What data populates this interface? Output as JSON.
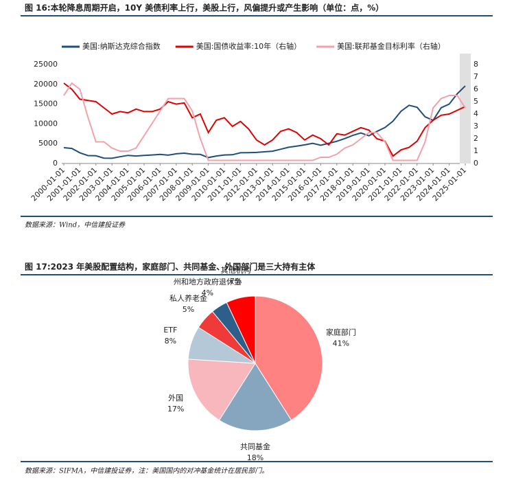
{
  "chart_data": [
    {
      "type": "line",
      "title": "图 16:本轮降息周期开启，10Y 美债利率上行，美股上行，风偏提升或产生影响（单位：点，%）",
      "source": "数据来源：Wind，中信建投证券",
      "x": [
        "2000-01-01",
        "2000-07-01",
        "2001-01-01",
        "2001-07-01",
        "2002-01-01",
        "2002-07-01",
        "2003-01-01",
        "2003-07-01",
        "2004-01-01",
        "2004-07-01",
        "2005-01-01",
        "2005-07-01",
        "2006-01-01",
        "2006-07-01",
        "2007-01-01",
        "2007-07-01",
        "2008-01-01",
        "2008-07-01",
        "2009-01-01",
        "2009-07-01",
        "2010-01-01",
        "2010-07-01",
        "2011-01-01",
        "2011-07-01",
        "2012-01-01",
        "2012-07-01",
        "2013-01-01",
        "2013-07-01",
        "2014-01-01",
        "2014-07-01",
        "2015-01-01",
        "2015-07-01",
        "2016-01-01",
        "2016-07-01",
        "2017-01-01",
        "2017-07-01",
        "2018-01-01",
        "2018-07-01",
        "2019-01-01",
        "2019-07-01",
        "2020-01-01",
        "2020-07-01",
        "2021-01-01",
        "2021-07-01",
        "2022-01-01",
        "2022-07-01",
        "2023-01-01",
        "2023-07-01",
        "2024-01-01",
        "2024-07-01",
        "2025-01-01"
      ],
      "xticks": [
        "2000-01-01",
        "2001-01-01",
        "2002-01-01",
        "2003-01-01",
        "2004-01-01",
        "2005-01-01",
        "2006-01-01",
        "2007-01-01",
        "2008-01-01",
        "2009-01-01",
        "2010-01-01",
        "2011-01-01",
        "2012-01-01",
        "2013-01-01",
        "2014-01-01",
        "2015-01-01",
        "2016-01-01",
        "2017-01-01",
        "2018-01-01",
        "2019-01-01",
        "2020-01-01",
        "2021-01-01",
        "2022-01-01",
        "2023-01-01",
        "2024-01-01",
        "2025-01-01"
      ],
      "ylim": [
        0,
        25000
      ],
      "yticks": [
        0,
        5000,
        10000,
        15000,
        20000,
        25000
      ],
      "y2lim": [
        0,
        8
      ],
      "y2ticks": [
        0,
        1,
        2,
        3,
        4,
        5,
        6,
        7,
        8
      ],
      "series": [
        {
          "name": "美国:纳斯达克综合指数",
          "color": "#1f4e79",
          "values": [
            4000,
            3800,
            2700,
            2000,
            1950,
            1350,
            1320,
            1700,
            2050,
            1900,
            2050,
            2150,
            2300,
            2100,
            2450,
            2600,
            2350,
            2300,
            1500,
            1900,
            2150,
            2200,
            2700,
            2750,
            2800,
            2950,
            3100,
            3600,
            4100,
            4400,
            4700,
            5100,
            4600,
            5100,
            5600,
            6300,
            7100,
            7700,
            7000,
            8100,
            9100,
            10700,
            13200,
            14700,
            14200,
            11800,
            10900,
            14100,
            15000,
            17600,
            19600
          ]
        },
        {
          "name": "美国:国债收益率:10年（右轴）",
          "color": "#e00000",
          "axis": "y2",
          "values": [
            6.5,
            6.0,
            5.2,
            5.1,
            5.0,
            4.5,
            4.0,
            4.2,
            4.1,
            4.4,
            4.2,
            4.2,
            4.4,
            5.0,
            4.8,
            4.9,
            3.7,
            4.0,
            2.5,
            3.5,
            3.7,
            3.0,
            3.4,
            2.8,
            1.9,
            1.5,
            1.9,
            2.6,
            2.8,
            2.5,
            1.9,
            2.3,
            2.0,
            1.5,
            2.4,
            2.3,
            2.6,
            2.9,
            2.7,
            2.0,
            1.8,
            0.6,
            1.1,
            1.3,
            1.8,
            2.9,
            3.5,
            3.9,
            4.0,
            4.3,
            4.6
          ]
        },
        {
          "name": "美国:联邦基金目标利率（右轴）",
          "color": "#f4a0a8",
          "axis": "y2",
          "values": [
            5.5,
            6.5,
            6.0,
            3.75,
            1.75,
            1.75,
            1.25,
            1.0,
            1.0,
            1.25,
            2.25,
            3.25,
            4.25,
            5.25,
            5.25,
            5.25,
            4.25,
            2.0,
            0.25,
            0.25,
            0.25,
            0.25,
            0.25,
            0.25,
            0.25,
            0.25,
            0.25,
            0.25,
            0.25,
            0.25,
            0.25,
            0.25,
            0.5,
            0.5,
            0.75,
            1.25,
            1.5,
            2.0,
            2.5,
            2.5,
            1.75,
            0.25,
            0.25,
            0.25,
            0.25,
            1.75,
            4.5,
            5.25,
            5.5,
            5.5,
            4.5
          ]
        }
      ]
    },
    {
      "type": "pie",
      "title": "图 17:2023 年美股配置结构，家庭部门、共同基金、外国部门是三大持有主体",
      "source": "数据来源：SIFMA，中信建投证券，注：美国国内的对冲基金统计在居民部门。",
      "categories": [
        "家庭部门",
        "共同基金",
        "外国",
        "ETF",
        "私人养老金",
        "州和地方政府退休金",
        "其他机构"
      ],
      "values": [
        41,
        18,
        17,
        8,
        5,
        4,
        7
      ],
      "value_labels": [
        "41%",
        "18%",
        "17%",
        "8%",
        "5%",
        "4%",
        "7%"
      ],
      "colors": [
        "#ff8282",
        "#86a6c0",
        "#f7b7bd",
        "#b5c8d8",
        "#ef3a3a",
        "#2e5f8a",
        "#ff0000"
      ]
    }
  ]
}
